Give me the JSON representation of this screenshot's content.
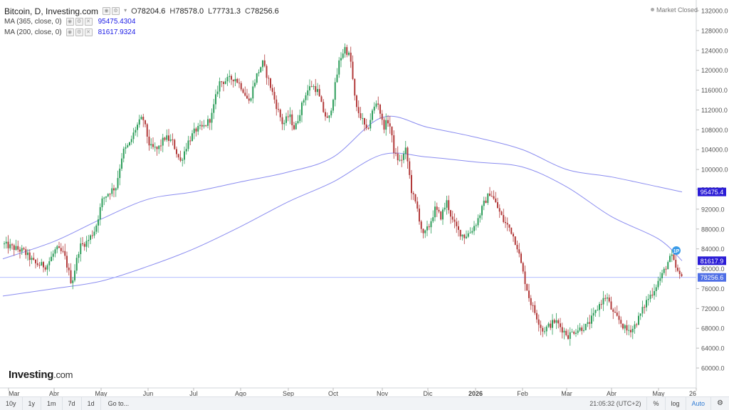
{
  "legend": {
    "title": "Bitcoin, D, Investing.com",
    "open_label": "O",
    "open": "78204.6",
    "high_label": "H",
    "high": "78578.0",
    "low_label": "L",
    "low": "77731.3",
    "close_label": "C",
    "close": "78256.6",
    "ma1_label": "MA (365, close, 0)",
    "ma1_value": "95475.4304",
    "ma1_color": "#1a1ae6",
    "ma2_label": "MA (200, close, 0)",
    "ma2_value": "81617.9324",
    "ma2_color": "#1a1ae6"
  },
  "market_status": "Market Closed",
  "badges": {
    "ma1": "95475.4",
    "ma2": "81617.9",
    "price": "78256.6",
    "marker": "1P"
  },
  "logo": {
    "name": "Investing",
    "suffix": ".com"
  },
  "bottom_bar": {
    "ranges": [
      "10y",
      "1y",
      "1m",
      "7d",
      "1d"
    ],
    "goto": "Go to...",
    "clock": "21:05:32 (UTC+2)",
    "percent": "%",
    "log": "log",
    "auto": "Auto"
  },
  "colors": {
    "up": "#2e9e5b",
    "down": "#b23a3a",
    "ma": "#8a8cf0",
    "price_line": "#a8b4ff",
    "badge_ma": "#2b1cd6",
    "badge_price": "#4f6fe6"
  },
  "chart_data": {
    "type": "candlestick",
    "instrument": "Bitcoin",
    "interval": "D",
    "x_labels": [
      "Mar",
      "Abr",
      "May",
      "Jun",
      "Jul",
      "Ago",
      "Sep",
      "Oct",
      "Nov",
      "Dic",
      "2026",
      "Feb",
      "Mar",
      "Abr",
      "May",
      "26"
    ],
    "y_ticks": [
      "132000.0",
      "128000.0",
      "124000.0",
      "120000.0",
      "116000.0",
      "112000.0",
      "108000.0",
      "104000.0",
      "100000.0",
      "96000.0",
      "92000.0",
      "88000.0",
      "84000.0",
      "80000.0",
      "76000.0",
      "72000.0",
      "68000.0",
      "64000.0",
      "60000.0"
    ],
    "ylim": [
      58000,
      133000
    ],
    "price_path": [
      [
        "Mar",
        85000
      ],
      [
        "Mar",
        83500
      ],
      [
        "Mar",
        81000
      ],
      [
        "Mar",
        80500
      ],
      [
        "Abr",
        84000
      ],
      [
        "Abr",
        83000
      ],
      [
        "Abr",
        77000
      ],
      [
        "Abr",
        84500
      ],
      [
        "Abr",
        85500
      ],
      [
        "Abr",
        88000
      ],
      [
        "May",
        94000
      ],
      [
        "May",
        95500
      ],
      [
        "May",
        96500
      ],
      [
        "May",
        103500
      ],
      [
        "May",
        105000
      ],
      [
        "May",
        108500
      ],
      [
        "May",
        110500
      ],
      [
        "Jun",
        104500
      ],
      [
        "Jun",
        104000
      ],
      [
        "Jun",
        106500
      ],
      [
        "Jun",
        105500
      ],
      [
        "Jun",
        101500
      ],
      [
        "Jun",
        105500
      ],
      [
        "Jul",
        108000
      ],
      [
        "Jul",
        108500
      ],
      [
        "Jul",
        110500
      ],
      [
        "Jul",
        117500
      ],
      [
        "Jul",
        118000
      ],
      [
        "Jul",
        118500
      ],
      [
        "Ago",
        116500
      ],
      [
        "Ago",
        113500
      ],
      [
        "Ago",
        118500
      ],
      [
        "Ago",
        121500
      ],
      [
        "Ago",
        117500
      ],
      [
        "Ago",
        113000
      ],
      [
        "Ago",
        109000
      ],
      [
        "Sep",
        111000
      ],
      [
        "Sep",
        108000
      ],
      [
        "Sep",
        112000
      ],
      [
        "Sep",
        115500
      ],
      [
        "Sep",
        117000
      ],
      [
        "Sep",
        116000
      ],
      [
        "Sep",
        112000
      ],
      [
        "Sep",
        109500
      ],
      [
        "Oct",
        115500
      ],
      [
        "Oct",
        122000
      ],
      [
        "Oct",
        124500
      ],
      [
        "Oct",
        122500
      ],
      [
        "Oct",
        112500
      ],
      [
        "Oct",
        110500
      ],
      [
        "Oct",
        107500
      ],
      [
        "Oct",
        111500
      ],
      [
        "Oct",
        114000
      ],
      [
        "Nov",
        108500
      ],
      [
        "Nov",
        110000
      ],
      [
        "Nov",
        103000
      ],
      [
        "Nov",
        101500
      ],
      [
        "Nov",
        104000
      ],
      [
        "Nov",
        95500
      ],
      [
        "Nov",
        92000
      ],
      [
        "Nov",
        86500
      ],
      [
        "Dic",
        88500
      ],
      [
        "Dic",
        92000
      ],
      [
        "Dic",
        90500
      ],
      [
        "Dic",
        93500
      ],
      [
        "Dic",
        89500
      ],
      [
        "Dic",
        87500
      ],
      [
        "Dic",
        86500
      ],
      [
        "Dic",
        87500
      ],
      [
        "2026",
        89500
      ],
      [
        "2026",
        93000
      ],
      [
        "2026",
        95500
      ],
      [
        "2026",
        92500
      ],
      [
        "2026",
        89500
      ],
      [
        "2026",
        88000
      ],
      [
        "2026",
        84500
      ],
      [
        "Feb",
        78500
      ],
      [
        "Feb",
        73500
      ],
      [
        "Feb",
        70500
      ],
      [
        "Feb",
        67500
      ],
      [
        "Feb",
        68500
      ],
      [
        "Feb",
        69500
      ],
      [
        "Feb",
        68000
      ],
      [
        "Mar",
        66500
      ],
      [
        "Mar",
        67500
      ],
      [
        "Mar",
        68000
      ],
      [
        "Mar",
        68500
      ],
      [
        "Mar",
        70500
      ],
      [
        "Mar",
        73000
      ],
      [
        "Mar",
        74500
      ],
      [
        "Abr",
        71000
      ],
      [
        "Abr",
        69500
      ],
      [
        "Abr",
        67500
      ],
      [
        "Abr",
        68000
      ],
      [
        "Abr",
        70500
      ],
      [
        "Abr",
        73500
      ],
      [
        "Abr",
        75500
      ],
      [
        "May",
        77500
      ],
      [
        "May",
        78500
      ],
      [
        "May",
        80000
      ],
      [
        "May",
        81500
      ],
      [
        "May",
        82500
      ],
      [
        "May",
        80500
      ],
      [
        "May",
        78256.6
      ]
    ],
    "series": [
      {
        "name": "MA (365, close, 0)",
        "color": "#8a8cf0",
        "points": [
          [
            "Mar",
            82000
          ],
          [
            "Abr",
            85500
          ],
          [
            "May",
            90000
          ],
          [
            "Jun",
            94000
          ],
          [
            "Jul",
            95500
          ],
          [
            "Ago",
            97500
          ],
          [
            "Sep",
            99500
          ],
          [
            "Oct",
            102500
          ],
          [
            "Nov",
            110500
          ],
          [
            "Dic",
            108500
          ],
          [
            "2026",
            106500
          ],
          [
            "Feb",
            104000
          ],
          [
            "Mar",
            100000
          ],
          [
            "Abr",
            98500
          ],
          [
            "May",
            96500
          ],
          [
            "May",
            95475.4
          ]
        ]
      },
      {
        "name": "MA (200, close, 0)",
        "color": "#8a8cf0",
        "points": [
          [
            "Mar",
            74500
          ],
          [
            "Abr",
            76000
          ],
          [
            "May",
            77500
          ],
          [
            "Jun",
            80500
          ],
          [
            "Jul",
            84000
          ],
          [
            "Ago",
            88500
          ],
          [
            "Sep",
            93500
          ],
          [
            "Oct",
            97500
          ],
          [
            "Nov",
            103000
          ],
          [
            "Dic",
            102500
          ],
          [
            "2026",
            101500
          ],
          [
            "Feb",
            100500
          ],
          [
            "Mar",
            96500
          ],
          [
            "Abr",
            90500
          ],
          [
            "May",
            86000
          ],
          [
            "May",
            81617.9
          ]
        ]
      }
    ],
    "last_price": 78256.6,
    "grid": false
  }
}
